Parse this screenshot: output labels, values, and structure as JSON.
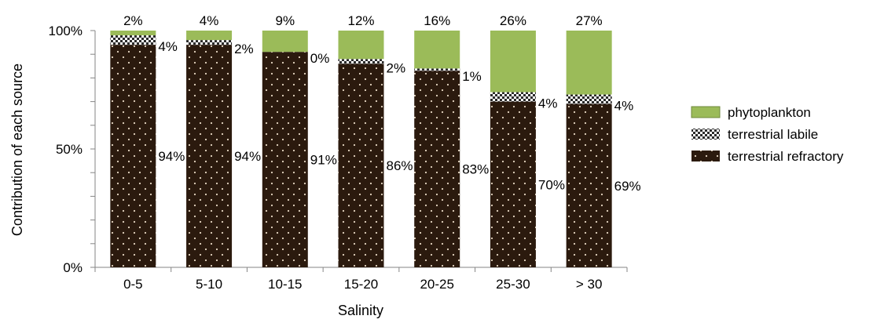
{
  "chart_data": {
    "type": "bar",
    "stacked": true,
    "xlabel": "Salinity",
    "ylabel": "Contribution of each source",
    "ylim": [
      0,
      100
    ],
    "yticks": [
      "0%",
      "50%",
      "100%"
    ],
    "categories": [
      "0-5",
      "5-10",
      "10-15",
      "15-20",
      "20-25",
      "25-30",
      "> 30"
    ],
    "series": [
      {
        "name": "terrestrial refractory",
        "values": [
          94,
          94,
          91,
          86,
          83,
          70,
          69
        ],
        "labels": [
          "94%",
          "94%",
          "91%",
          "86%",
          "83%",
          "70%",
          "69%"
        ],
        "color": "#2b1a0e",
        "pattern": "dots"
      },
      {
        "name": "terrestrial labile",
        "values": [
          4,
          2,
          0,
          2,
          1,
          4,
          4
        ],
        "labels": [
          "4%",
          "2%",
          "0%",
          "2%",
          "1%",
          "4%",
          "4%"
        ],
        "color": "#ffffff",
        "pattern": "checker"
      },
      {
        "name": "phytoplankton",
        "values": [
          2,
          4,
          9,
          12,
          16,
          26,
          27
        ],
        "labels": [
          "2%",
          "4%",
          "9%",
          "12%",
          "16%",
          "26%",
          "27%"
        ],
        "color": "#9bbb59",
        "pattern": "solid"
      }
    ],
    "legend": {
      "position": "right",
      "order": [
        "phytoplankton",
        "terrestrial labile",
        "terrestrial refractory"
      ]
    },
    "grid": false
  }
}
